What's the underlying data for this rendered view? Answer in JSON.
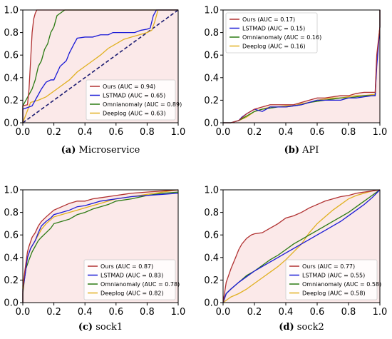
{
  "colors": {
    "Ours": "#b03030",
    "LSTMAD": "#1a1ad6",
    "Omnianomaly": "#2a7a12",
    "Deeplog": "#e0b020",
    "diagonal": "#1a1a70",
    "fill_pink": "#f8d7d7"
  },
  "chart_data": [
    {
      "type": "line",
      "caption_tag": "(a)",
      "caption_text": "Microservice",
      "xlim": [
        0,
        1
      ],
      "ylim": [
        0,
        1
      ],
      "xticks": [
        "0.0",
        "0.2",
        "0.4",
        "0.6",
        "0.8",
        "1.0"
      ],
      "yticks": [
        "0.0",
        "0.2",
        "0.4",
        "0.6",
        "0.8",
        "1.0"
      ],
      "legend_position": "lower-right",
      "diagonal": true,
      "series": [
        {
          "name": "Ours",
          "legend": "Ours (AUC = 0.94)",
          "x": [
            0,
            0.0,
            0.03,
            0.04,
            0.05,
            0.06,
            0.07,
            0.08,
            0.09,
            0.1,
            1.0
          ],
          "y": [
            0,
            0.15,
            0.16,
            0.3,
            0.55,
            0.8,
            0.92,
            0.97,
            1.0,
            1.0,
            1.0
          ]
        },
        {
          "name": "LSTMAD",
          "legend": "LSTMAD (AUC = 0.65)",
          "x": [
            0,
            0.0,
            0.02,
            0.06,
            0.1,
            0.12,
            0.15,
            0.18,
            0.2,
            0.24,
            0.28,
            0.3,
            0.33,
            0.35,
            0.4,
            0.45,
            0.5,
            0.55,
            0.58,
            0.63,
            0.68,
            0.72,
            0.76,
            0.8,
            0.82,
            0.84,
            0.86,
            1.0
          ],
          "y": [
            0,
            0.12,
            0.13,
            0.15,
            0.25,
            0.3,
            0.36,
            0.38,
            0.38,
            0.5,
            0.55,
            0.62,
            0.7,
            0.75,
            0.76,
            0.76,
            0.78,
            0.78,
            0.8,
            0.8,
            0.8,
            0.8,
            0.82,
            0.83,
            0.84,
            0.95,
            1.0,
            1.0
          ]
        },
        {
          "name": "Omnianomaly",
          "legend": "Omnianomaly (AUC = 0.89)",
          "x": [
            0,
            0.0,
            0.04,
            0.06,
            0.08,
            0.1,
            0.12,
            0.14,
            0.16,
            0.18,
            0.2,
            0.22,
            0.25,
            0.27,
            1.0
          ],
          "y": [
            0,
            0.15,
            0.25,
            0.3,
            0.38,
            0.5,
            0.55,
            0.65,
            0.7,
            0.8,
            0.85,
            0.95,
            0.98,
            1.0,
            1.0
          ]
        },
        {
          "name": "Deeplog",
          "legend": "Deeplog (AUC = 0.63)",
          "x": [
            0,
            0.05,
            0.1,
            0.15,
            0.2,
            0.25,
            0.3,
            0.35,
            0.4,
            0.45,
            0.5,
            0.55,
            0.6,
            0.65,
            0.7,
            0.75,
            0.8,
            0.83,
            0.85,
            0.87,
            1.0
          ],
          "y": [
            0,
            0.18,
            0.2,
            0.23,
            0.28,
            0.33,
            0.38,
            0.45,
            0.5,
            0.55,
            0.6,
            0.66,
            0.7,
            0.74,
            0.76,
            0.78,
            0.8,
            0.82,
            0.9,
            1.0,
            1.0
          ]
        }
      ]
    },
    {
      "type": "line",
      "caption_tag": "(b)",
      "caption_text": "API",
      "xlim": [
        0,
        1
      ],
      "ylim": [
        0,
        1
      ],
      "xticks": [
        "0.0",
        "0.2",
        "0.4",
        "0.6",
        "0.8",
        "1.0"
      ],
      "yticks": [
        "0.0",
        "0.2",
        "0.4",
        "0.6",
        "0.8",
        "1.0"
      ],
      "legend_position": "upper-left",
      "diagonal": false,
      "series": [
        {
          "name": "Ours",
          "legend": "Ours (AUC = 0.17)",
          "x": [
            0,
            0.05,
            0.1,
            0.15,
            0.2,
            0.25,
            0.3,
            0.35,
            0.4,
            0.45,
            0.5,
            0.55,
            0.6,
            0.65,
            0.7,
            0.75,
            0.8,
            0.85,
            0.9,
            0.95,
            0.97,
            0.98,
            1.0,
            1.0
          ],
          "y": [
            0,
            0.0,
            0.02,
            0.08,
            0.12,
            0.14,
            0.16,
            0.16,
            0.16,
            0.16,
            0.18,
            0.2,
            0.22,
            0.22,
            0.23,
            0.24,
            0.24,
            0.26,
            0.27,
            0.27,
            0.27,
            0.6,
            0.85,
            1.0
          ]
        },
        {
          "name": "LSTMAD",
          "legend": "LSTMAD (AUC = 0.15)",
          "x": [
            0,
            0.05,
            0.1,
            0.12,
            0.15,
            0.2,
            0.25,
            0.3,
            0.35,
            0.4,
            0.45,
            0.5,
            0.55,
            0.6,
            0.65,
            0.7,
            0.75,
            0.8,
            0.85,
            0.9,
            0.95,
            0.97,
            0.98,
            1.0,
            1.0
          ],
          "y": [
            0,
            0.0,
            0.02,
            0.05,
            0.08,
            0.12,
            0.1,
            0.14,
            0.14,
            0.14,
            0.15,
            0.16,
            0.18,
            0.2,
            0.2,
            0.2,
            0.2,
            0.22,
            0.22,
            0.23,
            0.24,
            0.24,
            0.5,
            0.85,
            1.0
          ]
        },
        {
          "name": "Omnianomaly",
          "legend": "Omnianomaly (AUC = 0.16)",
          "x": [
            0,
            0.05,
            0.1,
            0.15,
            0.2,
            0.25,
            0.3,
            0.35,
            0.4,
            0.45,
            0.5,
            0.55,
            0.6,
            0.65,
            0.7,
            0.75,
            0.8,
            0.85,
            0.9,
            0.95,
            0.97,
            0.98,
            1.0,
            1.0
          ],
          "y": [
            0,
            0.0,
            0.02,
            0.06,
            0.1,
            0.12,
            0.13,
            0.14,
            0.14,
            0.15,
            0.16,
            0.18,
            0.19,
            0.2,
            0.21,
            0.22,
            0.22,
            0.23,
            0.24,
            0.24,
            0.24,
            0.55,
            0.85,
            1.0
          ]
        },
        {
          "name": "Deeplog",
          "legend": "Deeplog (AUC = 0.16)",
          "x": [
            0,
            0.05,
            0.1,
            0.15,
            0.2,
            0.25,
            0.3,
            0.35,
            0.4,
            0.45,
            0.5,
            0.55,
            0.6,
            0.65,
            0.7,
            0.75,
            0.8,
            0.85,
            0.9,
            0.95,
            0.97,
            0.98,
            1.0,
            1.0
          ],
          "y": [
            0,
            0.0,
            0.02,
            0.05,
            0.1,
            0.12,
            0.14,
            0.14,
            0.15,
            0.15,
            0.17,
            0.18,
            0.2,
            0.21,
            0.22,
            0.22,
            0.23,
            0.24,
            0.24,
            0.25,
            0.25,
            0.55,
            0.85,
            1.0
          ]
        }
      ]
    },
    {
      "type": "line",
      "caption_tag": "(c)",
      "caption_text": "sock1",
      "xlim": [
        0,
        1
      ],
      "ylim": [
        0,
        1
      ],
      "xticks": [
        "0.0",
        "0.2",
        "0.4",
        "0.6",
        "0.8",
        "1.0"
      ],
      "yticks": [
        "0.0",
        "0.2",
        "0.4",
        "0.6",
        "0.8",
        "1.0"
      ],
      "legend_position": "lower-right",
      "diagonal": false,
      "series": [
        {
          "name": "Ours",
          "legend": "Ours (AUC = 0.87)",
          "x": [
            0,
            0.0,
            0.01,
            0.02,
            0.03,
            0.04,
            0.06,
            0.08,
            0.1,
            0.12,
            0.15,
            0.2,
            0.25,
            0.3,
            0.35,
            0.4,
            0.45,
            0.5,
            0.55,
            0.6,
            0.65,
            0.7,
            0.8,
            0.9,
            1.0
          ],
          "y": [
            0,
            0.1,
            0.25,
            0.35,
            0.45,
            0.5,
            0.58,
            0.62,
            0.68,
            0.72,
            0.76,
            0.82,
            0.85,
            0.88,
            0.9,
            0.9,
            0.92,
            0.93,
            0.94,
            0.95,
            0.96,
            0.97,
            0.98,
            0.99,
            1.0
          ]
        },
        {
          "name": "LSTMAD",
          "legend": "LSTMAD (AUC = 0.83)",
          "x": [
            0,
            0.0,
            0.01,
            0.02,
            0.03,
            0.05,
            0.08,
            0.1,
            0.12,
            0.15,
            0.18,
            0.2,
            0.25,
            0.3,
            0.35,
            0.4,
            0.45,
            0.5,
            0.6,
            0.7,
            0.8,
            0.9,
            1.0
          ],
          "y": [
            0,
            0.12,
            0.2,
            0.3,
            0.4,
            0.48,
            0.55,
            0.62,
            0.68,
            0.72,
            0.75,
            0.78,
            0.8,
            0.82,
            0.85,
            0.86,
            0.88,
            0.9,
            0.92,
            0.94,
            0.95,
            0.96,
            0.97
          ]
        },
        {
          "name": "Omnianomaly",
          "legend": "Omnianomaly (AUC = 0.78)",
          "x": [
            0,
            0.0,
            0.01,
            0.02,
            0.04,
            0.06,
            0.08,
            0.1,
            0.12,
            0.15,
            0.18,
            0.2,
            0.25,
            0.3,
            0.35,
            0.4,
            0.45,
            0.5,
            0.55,
            0.6,
            0.7,
            0.8,
            0.9,
            1.0
          ],
          "y": [
            0,
            0.08,
            0.2,
            0.3,
            0.38,
            0.45,
            0.5,
            0.55,
            0.58,
            0.62,
            0.66,
            0.7,
            0.72,
            0.74,
            0.78,
            0.8,
            0.83,
            0.85,
            0.87,
            0.9,
            0.92,
            0.95,
            0.97,
            0.98
          ]
        },
        {
          "name": "Deeplog",
          "legend": "Deeplog (AUC = 0.82)",
          "x": [
            0,
            0.0,
            0.01,
            0.02,
            0.03,
            0.05,
            0.08,
            0.1,
            0.12,
            0.15,
            0.2,
            0.25,
            0.3,
            0.35,
            0.4,
            0.45,
            0.5,
            0.55,
            0.6,
            0.7,
            0.8,
            0.9,
            1.0
          ],
          "y": [
            0,
            0.15,
            0.25,
            0.32,
            0.4,
            0.48,
            0.55,
            0.6,
            0.65,
            0.7,
            0.76,
            0.78,
            0.8,
            0.82,
            0.84,
            0.86,
            0.88,
            0.9,
            0.92,
            0.94,
            0.96,
            0.98,
            1.0
          ]
        }
      ]
    },
    {
      "type": "line",
      "caption_tag": "(d)",
      "caption_text": "sock2",
      "xlim": [
        0,
        1
      ],
      "ylim": [
        0,
        1
      ],
      "xticks": [
        "0.0",
        "0.2",
        "0.4",
        "0.6",
        "0.8",
        "1.0"
      ],
      "yticks": [
        "0.0",
        "0.2",
        "0.4",
        "0.6",
        "0.8",
        "1.0"
      ],
      "legend_position": "lower-right",
      "diagonal": false,
      "series": [
        {
          "name": "Ours",
          "legend": "Ours (AUC = 0.77)",
          "x": [
            0,
            0.02,
            0.05,
            0.08,
            0.1,
            0.12,
            0.15,
            0.18,
            0.2,
            0.25,
            0.3,
            0.35,
            0.4,
            0.45,
            0.5,
            0.55,
            0.6,
            0.65,
            0.7,
            0.75,
            0.8,
            0.85,
            0.9,
            0.95,
            1.0
          ],
          "y": [
            0,
            0.18,
            0.3,
            0.4,
            0.47,
            0.52,
            0.57,
            0.6,
            0.61,
            0.62,
            0.66,
            0.7,
            0.75,
            0.77,
            0.8,
            0.84,
            0.87,
            0.9,
            0.92,
            0.94,
            0.95,
            0.97,
            0.98,
            0.99,
            1.0
          ]
        },
        {
          "name": "LSTMAD",
          "legend": "LSTMAD (AUC = 0.55)",
          "x": [
            0,
            0.02,
            0.05,
            0.1,
            0.15,
            0.2,
            0.25,
            0.3,
            0.35,
            0.4,
            0.45,
            0.5,
            0.55,
            0.6,
            0.65,
            0.7,
            0.75,
            0.8,
            0.85,
            0.9,
            0.95,
            1.0
          ],
          "y": [
            0,
            0.08,
            0.12,
            0.18,
            0.23,
            0.28,
            0.32,
            0.36,
            0.4,
            0.44,
            0.48,
            0.52,
            0.56,
            0.6,
            0.64,
            0.68,
            0.72,
            0.77,
            0.82,
            0.87,
            0.93,
            1.0
          ]
        },
        {
          "name": "Omnianomaly",
          "legend": "Omnianomaly (AUC = 0.58)",
          "x": [
            0,
            0.02,
            0.05,
            0.1,
            0.15,
            0.2,
            0.25,
            0.3,
            0.35,
            0.4,
            0.45,
            0.5,
            0.55,
            0.6,
            0.65,
            0.7,
            0.75,
            0.8,
            0.85,
            0.9,
            0.95,
            1.0
          ],
          "y": [
            0,
            0.08,
            0.12,
            0.18,
            0.24,
            0.28,
            0.33,
            0.38,
            0.42,
            0.47,
            0.52,
            0.56,
            0.6,
            0.64,
            0.68,
            0.72,
            0.76,
            0.8,
            0.85,
            0.9,
            0.95,
            1.0
          ]
        },
        {
          "name": "Deeplog",
          "legend": "Deeplog (AUC = 0.58)",
          "x": [
            0,
            0.05,
            0.1,
            0.15,
            0.2,
            0.25,
            0.3,
            0.35,
            0.4,
            0.45,
            0.5,
            0.55,
            0.6,
            0.65,
            0.7,
            0.75,
            0.8,
            0.85,
            0.9,
            0.95,
            1.0
          ],
          "y": [
            0,
            0.05,
            0.08,
            0.12,
            0.17,
            0.22,
            0.27,
            0.32,
            0.38,
            0.45,
            0.52,
            0.62,
            0.7,
            0.76,
            0.82,
            0.87,
            0.92,
            0.95,
            0.97,
            0.99,
            1.0
          ]
        }
      ]
    }
  ]
}
